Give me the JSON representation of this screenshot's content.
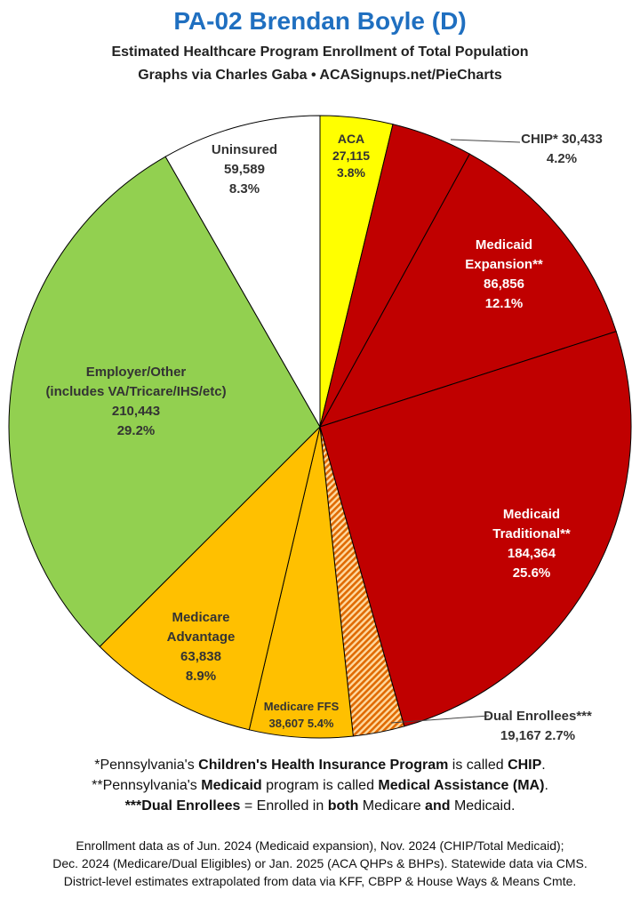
{
  "header": {
    "title": "PA-02 Brendan Boyle (D)",
    "subtitle_1": "Estimated Healthcare Program Enrollment of Total Population",
    "subtitle_2": "Graphs via Charles Gaba  •  ACASignups.net/PieCharts"
  },
  "chart_data": {
    "type": "pie",
    "title": "PA-02 Brendan Boyle (D)",
    "slices": [
      {
        "name": "ACA",
        "value": 27115,
        "percent": 3.8,
        "color": "#ffff00",
        "label_lines": [
          "ACA",
          "27,115",
          "3.8%"
        ],
        "label_color": "#333333"
      },
      {
        "name": "CHIP*",
        "value": 30433,
        "percent": 4.2,
        "color": "#c00000",
        "label_lines": [
          "CHIP* 30,433",
          "4.2%"
        ],
        "label_color": "#333333"
      },
      {
        "name": "Medicaid Expansion**",
        "value": 86856,
        "percent": 12.1,
        "color": "#c00000",
        "label_lines": [
          "Medicaid",
          "Expansion**",
          "86,856",
          "12.1%"
        ],
        "label_color": "#ffffff"
      },
      {
        "name": "Medicaid Traditional**",
        "value": 184364,
        "percent": 25.6,
        "color": "#c00000",
        "label_lines": [
          "Medicaid",
          "Traditional**",
          "184,364",
          "25.6%"
        ],
        "label_color": "#ffffff"
      },
      {
        "name": "Dual Enrollees***",
        "value": 19167,
        "percent": 2.7,
        "color": "#e07a00",
        "pattern": "hatch",
        "label_lines": [
          "Dual Enrollees***",
          "19,167 2.7%"
        ],
        "label_color": "#333333"
      },
      {
        "name": "Medicare FFS",
        "value": 38607,
        "percent": 5.4,
        "color": "#ffc000",
        "label_lines": [
          "Medicare FFS",
          "38,607 5.4%"
        ],
        "label_color": "#333333"
      },
      {
        "name": "Medicare Advantage",
        "value": 63838,
        "percent": 8.9,
        "color": "#ffc000",
        "label_lines": [
          "Medicare",
          "Advantage",
          "63,838",
          "8.9%"
        ],
        "label_color": "#333333"
      },
      {
        "name": "Employer/Other",
        "value": 210443,
        "percent": 29.2,
        "color": "#92d050",
        "label_lines": [
          "Employer/Other",
          "(includes VA/Tricare/IHS/etc)",
          "210,443",
          "29.2%"
        ],
        "label_color": "#333333"
      },
      {
        "name": "Uninsured",
        "value": 59589,
        "percent": 8.3,
        "color": "#ffffff",
        "label_lines": [
          "Uninsured",
          "59,589",
          "8.3%"
        ],
        "label_color": "#333333"
      }
    ]
  },
  "footnotes": {
    "n1": [
      "*Pennsylvania's ",
      "Children's Health Insurance Program",
      " is called ",
      "CHIP",
      "."
    ],
    "n2": [
      "**Pennsylvania's ",
      "Medicaid",
      " program is called ",
      "Medical Assistance (MA)",
      "."
    ],
    "n3": [
      "***Dual Enrollees",
      " = Enrolled in ",
      "both",
      " Medicare ",
      "and",
      " Medicaid."
    ]
  },
  "source": {
    "line_1": "Enrollment data as of Jun. 2024 (Medicaid expansion), Nov. 2024 (CHIP/Total Medicaid);",
    "line_2": "Dec. 2024 (Medicare/Dual Eligibles) or Jan. 2025 (ACA QHPs & BHPs). Statewide data via CMS.",
    "line_3": "District-level estimates extrapolated from data via KFF, CBPP & House Ways & Means Cmte."
  }
}
